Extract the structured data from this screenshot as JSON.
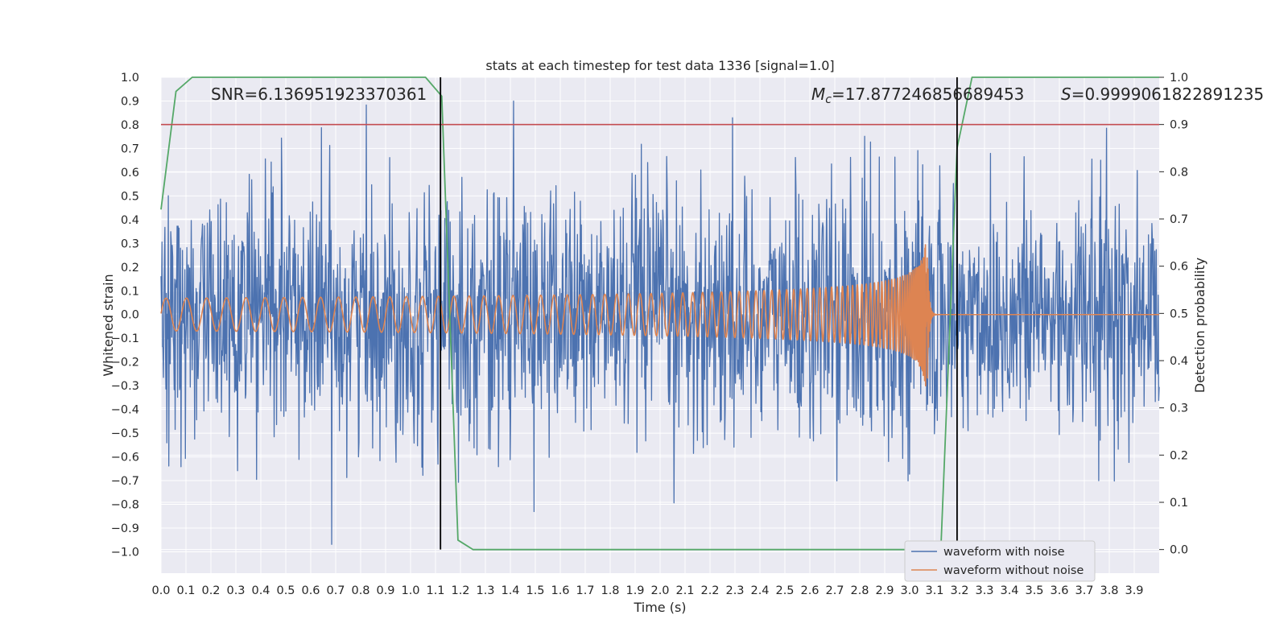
{
  "chart_data": {
    "type": "line",
    "title": "stats at each timestep for test data 1336 [signal=1.0]",
    "xlabel": "Time (s)",
    "ylabel": "Whitened strain",
    "y2label": "Detection probability",
    "xlim": [
      0.0,
      4.0
    ],
    "ylim": [
      -1.09,
      1.0
    ],
    "y2lim": [
      -0.05,
      1.0
    ],
    "x_ticks": [
      0.0,
      0.1,
      0.2,
      0.3,
      0.4,
      0.5,
      0.6,
      0.7,
      0.8,
      0.9,
      1.0,
      1.1,
      1.2,
      1.3,
      1.4,
      1.5,
      1.6,
      1.7,
      1.8,
      1.9,
      2.0,
      2.1,
      2.2,
      2.3,
      2.4,
      2.5,
      2.6,
      2.7,
      2.8,
      2.9,
      3.0,
      3.1,
      3.2,
      3.3,
      3.4,
      3.5,
      3.6,
      3.7,
      3.8,
      3.9
    ],
    "x_tick_labels": [
      "0.0",
      "0.1",
      "0.2",
      "0.3",
      "0.4",
      "0.5",
      "0.6",
      "0.7",
      "0.8",
      "0.9",
      "1.0",
      "1.1",
      "1.2",
      "1.3",
      "1.4",
      "1.5",
      "1.6",
      "1.7",
      "1.8",
      "1.9",
      "2.0",
      "2.1",
      "2.2",
      "2.3",
      "2.4",
      "2.5",
      "2.6",
      "2.7",
      "2.8",
      "2.9",
      "3.0",
      "3.1",
      "3.2",
      "3.3",
      "3.4",
      "3.5",
      "3.6",
      "3.7",
      "3.8",
      "3.9"
    ],
    "y_ticks": [
      1.0,
      0.9,
      0.8,
      0.7,
      0.6,
      0.5,
      0.4,
      0.3,
      0.2,
      0.1,
      0.0,
      -0.1,
      -0.2,
      -0.3,
      -0.4,
      -0.5,
      -0.6,
      -0.7,
      -0.8,
      -0.9,
      -1.0
    ],
    "y_tick_labels": [
      "1.0",
      "0.9",
      "0.8",
      "0.7",
      "0.6",
      "0.5",
      "0.4",
      "0.3",
      "0.2",
      "0.1",
      "0.0",
      "−0.1",
      "−0.2",
      "−0.3",
      "−0.4",
      "−0.5",
      "−0.6",
      "−0.7",
      "−0.8",
      "−0.9",
      "−1.0"
    ],
    "y2_ticks": [
      1.0,
      0.9,
      0.8,
      0.7,
      0.6,
      0.5,
      0.4,
      0.3,
      0.2,
      0.1,
      0.0
    ],
    "y2_tick_labels": [
      "1.0",
      "0.9",
      "0.8",
      "0.7",
      "0.6",
      "0.5",
      "0.4",
      "0.3",
      "0.2",
      "0.1",
      "0.0"
    ],
    "grid": true,
    "legend_position": "lower-right",
    "series": [
      {
        "name": "waveform with noise",
        "axis": "left",
        "color": "#4c72b0",
        "kind": "noise",
        "x_range": [
          0.0,
          4.0
        ],
        "samples": 2048,
        "peak_max": 0.9,
        "peak_min": -1.0
      },
      {
        "name": "waveform without noise",
        "axis": "left",
        "color": "#dd8452",
        "kind": "chirp",
        "x_range": [
          0.0,
          4.0
        ],
        "merger_time": 3.07,
        "peak_amplitude": 0.3
      },
      {
        "name": "detection probability",
        "axis": "right",
        "color": "#55a868",
        "x": [
          0.0,
          0.06,
          0.125,
          0.19,
          1.06,
          1.125,
          1.19,
          1.25,
          3.125,
          3.19,
          3.25,
          4.0
        ],
        "values": [
          0.72,
          0.97,
          1.0,
          1.0,
          1.0,
          0.96,
          0.02,
          0.0,
          0.0,
          0.85,
          1.0,
          1.0
        ]
      }
    ],
    "threshold": {
      "axis": "right",
      "value": 0.9,
      "color": "#c44e52"
    },
    "markers": [
      {
        "x": 1.12,
        "color": "#000000"
      },
      {
        "x": 3.19,
        "color": "#000000"
      }
    ],
    "annotations": {
      "snr": "SNR=6.136951923370361",
      "mc_symbol": "M",
      "mc_subscript": "c",
      "mc_value": "=17.877246856689453",
      "s_symbol": "S",
      "s_value": "=0.9999061822891235"
    },
    "colors": {
      "axes_bg": "#eaeaf2",
      "grid": "#ffffff",
      "text": "#262626"
    }
  }
}
